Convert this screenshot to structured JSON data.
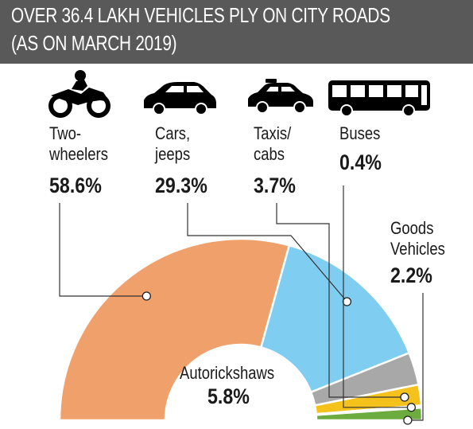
{
  "header": {
    "title_line1": "OVER 36.4 LAKH VEHICLES PLY ON CITY ROADS",
    "title_line2": "(AS ON MARCH 2019)",
    "background": "#595959"
  },
  "chart_data": {
    "type": "pie",
    "variant": "half-donut",
    "title": "OVER 36.4 LAKH VEHICLES PLY ON CITY ROADS (AS ON MARCH 2019)",
    "unit": "%",
    "series": [
      {
        "label_lines": [
          "Two-",
          "wheelers"
        ],
        "value": 58.6,
        "value_label": "58.6%",
        "color": "#f0a06b",
        "icon": "motorcycle-icon"
      },
      {
        "label_lines": [
          "Cars,",
          "jeeps"
        ],
        "value": 29.3,
        "value_label": "29.3%",
        "color": "#7fcdf0",
        "icon": "car-icon"
      },
      {
        "label_lines": [
          "Autorickshaws"
        ],
        "value": 5.8,
        "value_label": "5.8%",
        "color": "#a8a8a8"
      },
      {
        "label_lines": [
          "Taxis/",
          "cabs"
        ],
        "value": 3.7,
        "value_label": "3.7%",
        "color": "#f5c21b",
        "icon": "taxi-icon"
      },
      {
        "label_lines": [
          "Buses"
        ],
        "value": 0.4,
        "value_label": "0.4%",
        "color": "#f7e9a6",
        "icon": "bus-icon"
      },
      {
        "label_lines": [
          "Goods",
          "Vehicles"
        ],
        "value": 2.2,
        "value_label": "2.2%",
        "color": "#6cac3e"
      }
    ]
  }
}
